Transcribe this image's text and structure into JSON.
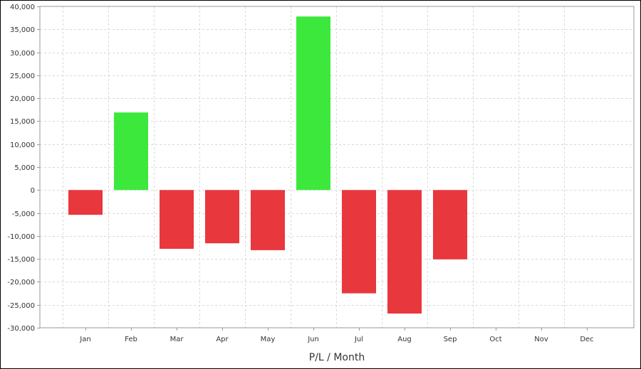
{
  "chart_data": {
    "type": "bar",
    "categories": [
      "Jan",
      "Feb",
      "Mar",
      "Apr",
      "May",
      "Jun",
      "Jul",
      "Aug",
      "Sep",
      "Oct",
      "Nov",
      "Dec"
    ],
    "values": [
      -5400,
      16900,
      -12800,
      -11600,
      -13100,
      37800,
      -22500,
      -26900,
      -15100,
      null,
      null,
      null
    ],
    "title": "",
    "xlabel": "P/L / Month",
    "ylabel": "",
    "ylim": [
      -30000,
      40000
    ],
    "yticks": [
      40000,
      35000,
      30000,
      25000,
      20000,
      15000,
      10000,
      5000,
      0,
      -5000,
      -10000,
      -15000,
      -20000,
      -25000,
      -30000
    ],
    "ytick_labels": [
      "40,000",
      "35,000",
      "30,000",
      "25,000",
      "20,000",
      "15,000",
      "10,000",
      "5,000",
      "0",
      "-5,000",
      "-10,000",
      "-15,000",
      "-20,000",
      "-25,000",
      "-30,000"
    ],
    "grid": true,
    "legend": "none",
    "colors": {
      "positive": "#3de83d",
      "negative": "#e8373d",
      "grid": "#d8d8d8",
      "axis": "#999999"
    }
  }
}
